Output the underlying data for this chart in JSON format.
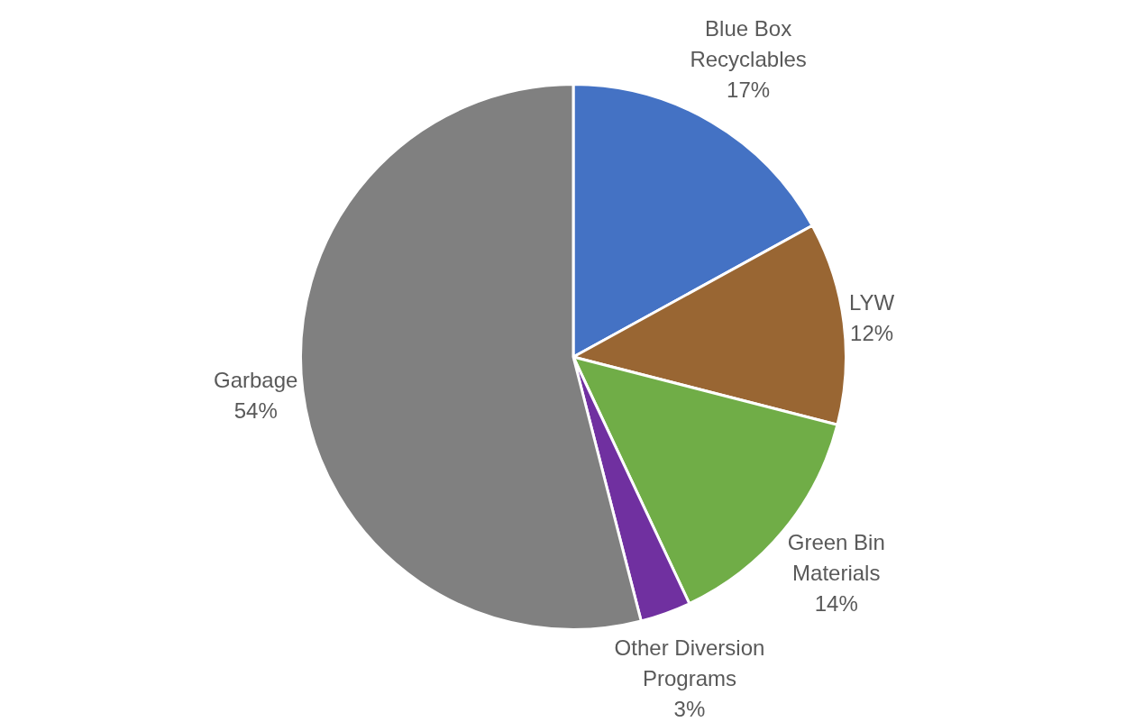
{
  "chart_data": {
    "type": "pie",
    "categories": [
      "Blue Box Recyclables",
      "LYW",
      "Green Bin Materials",
      "Other Diversion Programs",
      "Garbage"
    ],
    "values": [
      17,
      12,
      14,
      3,
      54
    ],
    "colors": [
      "#4472c4",
      "#996633",
      "#70ad47",
      "#7030a0",
      "#808080"
    ],
    "value_labels": [
      "17%",
      "12%",
      "14%",
      "3%",
      "54%"
    ],
    "legend": false
  }
}
